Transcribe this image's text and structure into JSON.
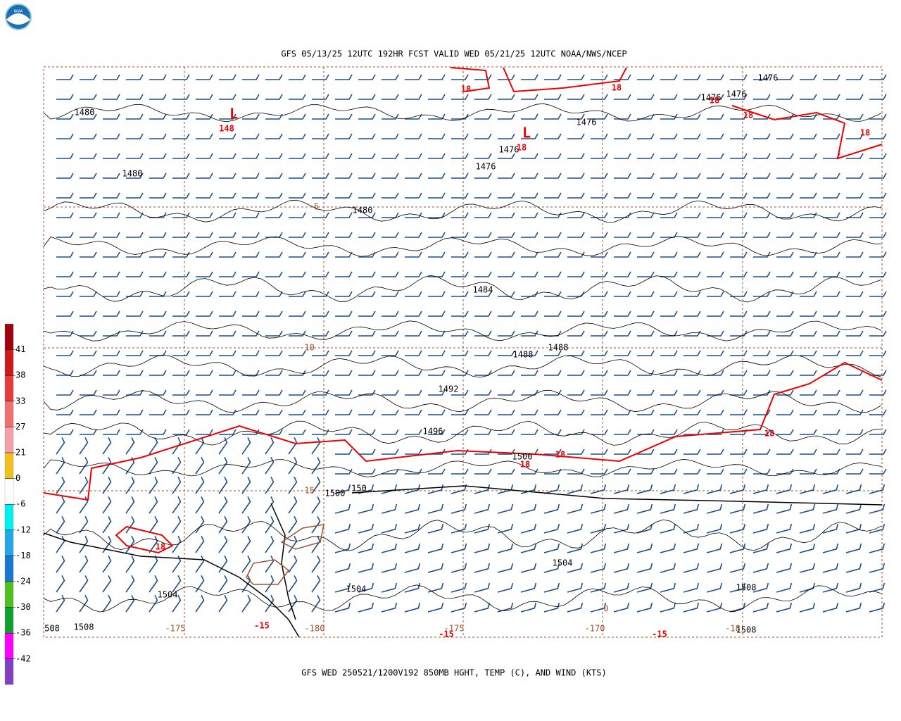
{
  "map": {
    "title": "GFS 05/13/25 12UTC 192HR FCST VALID WED 05/21/25 12UTC NOAA/NWS/NCEP",
    "caption": "GFS WED 250521/1200V192 850MB HGHT, TEMP (C), AND WIND (KTS)",
    "logo_text": "NOAA",
    "colorbar_labels": [
      41,
      38,
      33,
      27,
      21,
      0,
      -6,
      -12,
      -18,
      -24,
      -30,
      -36,
      -42
    ],
    "contour_labels": [
      "1480",
      "1480",
      "1480",
      "1476",
      "1476",
      "1476",
      "1476",
      "1476",
      "1476",
      "1484",
      "1488",
      "1488",
      "1492",
      "1496",
      "1500",
      "1500",
      "150",
      "1504",
      "1504",
      "1504",
      "1508",
      "1508",
      "508",
      "1508",
      "18",
      "18",
      "18",
      "18",
      "18",
      "18",
      "148",
      "L",
      "L",
      "18",
      "18",
      "18",
      "18",
      "-15",
      "-15",
      "-15",
      "-5",
      "-10",
      "-15",
      "-175",
      "-180",
      "-175",
      "-170",
      "-18",
      "0"
    ]
  }
}
